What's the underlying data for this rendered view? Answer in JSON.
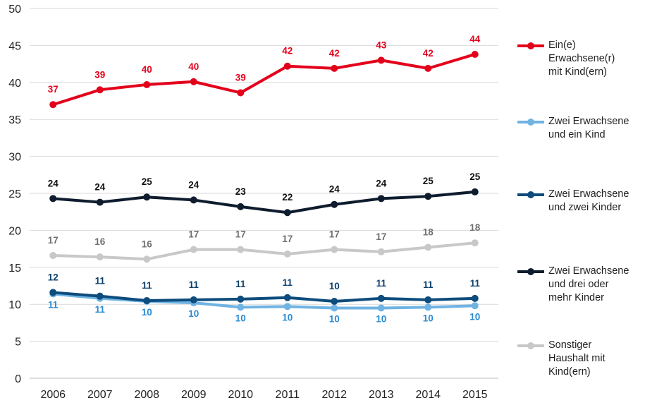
{
  "chart_data": {
    "type": "line",
    "title": "",
    "xlabel": "",
    "ylabel": "",
    "ylim": [
      0,
      50
    ],
    "yticks": [
      "0",
      "5",
      "10",
      "15",
      "20",
      "25",
      "30",
      "35",
      "40",
      "45",
      "50"
    ],
    "categories": [
      "2006",
      "2007",
      "2008",
      "2009",
      "2010",
      "2011",
      "2012",
      "2013",
      "2014",
      "2015"
    ],
    "grid": "horizontal",
    "legend_position": "right",
    "series": [
      {
        "name": "Ein(e) Erwachsene(r) mit Kind(ern)",
        "legend_lines": [
          "Ein(e)",
          "Erwachsene(r)",
          "mit Kind(ern)"
        ],
        "color": "#e3001b",
        "label_color": "#e3001b",
        "label_pos": "above",
        "values": [
          37.0,
          39.0,
          39.7,
          40.1,
          38.6,
          42.2,
          41.9,
          43.0,
          41.9,
          43.8
        ],
        "labels": [
          "37",
          "39",
          "40",
          "40",
          "39",
          "42",
          "42",
          "43",
          "42",
          "44"
        ]
      },
      {
        "name": "Zwei Erwachsene und ein Kind",
        "legend_lines": [
          "Zwei Erwachsene",
          "und ein Kind"
        ],
        "color": "#6fb3e3",
        "label_color": "#2a8ad2",
        "label_pos": "below",
        "values": [
          11.4,
          10.8,
          10.4,
          10.2,
          9.6,
          9.7,
          9.5,
          9.5,
          9.6,
          9.8
        ],
        "labels": [
          "11",
          "11",
          "10",
          "10",
          "10",
          "10",
          "10",
          "10",
          "10",
          "10"
        ]
      },
      {
        "name": "Zwei Erwachsene und zwei Kinder",
        "legend_lines": [
          "Zwei Erwachsene",
          "und zwei Kinder"
        ],
        "color": "#0d4c7d",
        "label_color": "#0d3f6b",
        "label_pos": "above",
        "values": [
          11.6,
          11.1,
          10.5,
          10.6,
          10.7,
          10.9,
          10.4,
          10.8,
          10.6,
          10.8
        ],
        "labels": [
          "12",
          "11",
          "11",
          "11",
          "11",
          "11",
          "10",
          "11",
          "11",
          "11"
        ]
      },
      {
        "name": "Zwei Erwachsene und drei oder mehr Kinder",
        "legend_lines": [
          "Zwei Erwachsene",
          "und drei oder",
          "mehr Kinder"
        ],
        "color": "#0e1c2e",
        "label_color": "#111111",
        "label_pos": "above",
        "values": [
          24.3,
          23.8,
          24.5,
          24.1,
          23.2,
          22.4,
          23.5,
          24.3,
          24.6,
          25.2
        ],
        "labels": [
          "24",
          "24",
          "25",
          "24",
          "23",
          "22",
          "24",
          "24",
          "25",
          "25"
        ]
      },
      {
        "name": "Sonstiger Haushalt mit Kind(ern)",
        "legend_lines": [
          "Sonstiger",
          "Haushalt mit",
          "Kind(ern)"
        ],
        "color": "#c8c8c8",
        "label_color": "#707070",
        "label_pos": "above",
        "values": [
          16.6,
          16.4,
          16.1,
          17.4,
          17.4,
          16.8,
          17.4,
          17.1,
          17.7,
          18.3
        ],
        "labels": [
          "17",
          "16",
          "16",
          "17",
          "17",
          "17",
          "17",
          "17",
          "18",
          "18"
        ]
      }
    ]
  }
}
